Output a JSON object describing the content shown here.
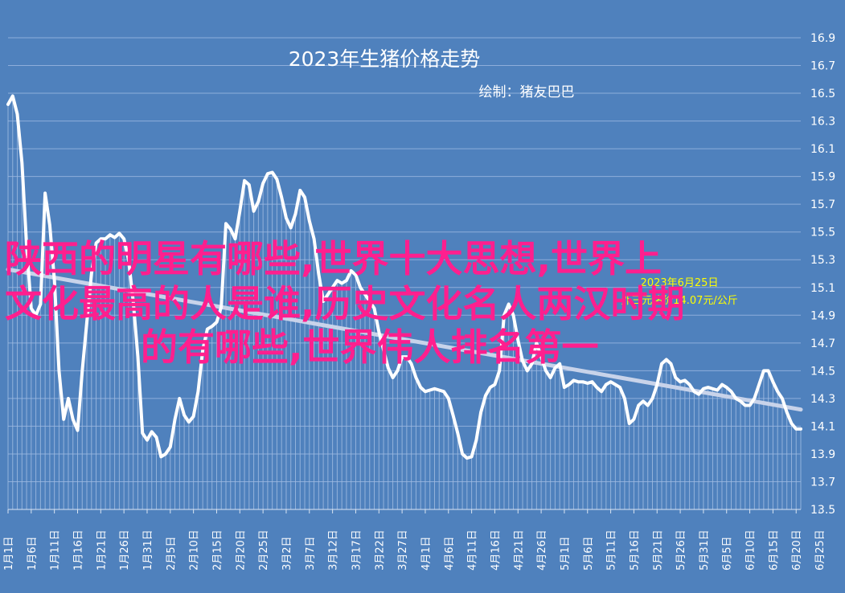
{
  "chart_data": {
    "type": "area",
    "title": "2023年生猪价格走势",
    "subtitle": "绘制：猪友巴巴",
    "xlabel": "",
    "ylabel": "",
    "ylim": [
      13.5,
      16.9
    ],
    "yticks": [
      "13.5",
      "13.7",
      "13.9",
      "14.1",
      "14.3",
      "14.5",
      "14.7",
      "14.9",
      "15.1",
      "15.3",
      "15.5",
      "15.7",
      "15.9",
      "16.1",
      "16.3",
      "16.5",
      "16.7",
      "16.9"
    ],
    "grid": true,
    "x_tick_labels": [
      "1月1日",
      "1月6日",
      "1月11日",
      "1月16日",
      "1月21日",
      "1月26日",
      "1月31日",
      "2月5日",
      "2月10日",
      "2月15日",
      "2月20日",
      "2月25日",
      "3月2日",
      "3月7日",
      "3月12日",
      "3月17日",
      "3月22日",
      "3月27日",
      "4月1日",
      "4月6日",
      "4月11日",
      "4月16日",
      "4月21日",
      "4月26日",
      "5月1日",
      "5月6日",
      "5月11日",
      "5月16日",
      "5月21日",
      "5月26日",
      "5月31日",
      "6月5日",
      "6月10日",
      "6月15日",
      "6月20日",
      "6月25日"
    ],
    "series": [
      {
        "values": [
          16.42,
          16.48,
          16.35,
          16.0,
          15.4,
          14.95,
          14.9,
          14.98,
          15.78,
          15.55,
          15.15,
          14.5,
          14.15,
          14.3,
          14.15,
          14.07,
          14.5,
          14.85,
          15.2,
          15.42,
          15.45,
          15.45,
          15.48,
          15.46,
          15.49,
          15.45,
          15.3,
          15.0,
          14.6,
          14.05,
          14.0,
          14.06,
          14.02,
          13.88,
          13.9,
          13.95,
          14.15,
          14.3,
          14.18,
          14.13,
          14.17,
          14.35,
          14.65,
          14.8,
          14.82,
          14.85,
          14.96,
          15.56,
          15.52,
          15.45,
          15.65,
          15.87,
          15.84,
          15.65,
          15.72,
          15.85,
          15.92,
          15.93,
          15.88,
          15.75,
          15.6,
          15.53,
          15.63,
          15.8,
          15.75,
          15.58,
          15.45,
          15.2,
          15.0,
          15.05,
          15.1,
          15.15,
          15.13,
          15.15,
          15.22,
          15.19,
          15.1,
          15.05,
          15.0,
          14.95,
          14.78,
          14.65,
          14.52,
          14.45,
          14.5,
          14.6,
          14.6,
          14.55,
          14.45,
          14.38,
          14.35,
          14.36,
          14.37,
          14.36,
          14.35,
          14.3,
          14.18,
          14.05,
          13.9,
          13.87,
          13.88,
          14.0,
          14.2,
          14.32,
          14.38,
          14.4,
          14.5,
          14.9,
          14.98,
          14.9,
          14.72,
          14.57,
          14.5,
          14.55,
          14.7,
          14.6,
          14.5,
          14.45,
          14.52,
          14.55,
          14.38,
          14.4,
          14.43,
          14.42,
          14.42,
          14.41,
          14.42,
          14.38,
          14.35,
          14.4,
          14.42,
          14.4,
          14.38,
          14.3,
          14.12,
          14.15,
          14.25,
          14.28,
          14.25,
          14.3,
          14.4,
          14.55,
          14.58,
          14.55,
          14.45,
          14.42,
          14.43,
          14.4,
          14.35,
          14.33,
          14.37,
          14.38,
          14.37,
          14.36,
          14.4,
          14.38,
          14.35,
          14.3,
          14.28,
          14.25,
          14.25,
          14.3,
          14.4,
          14.5,
          14.5,
          14.42,
          14.35,
          14.3,
          14.2,
          14.12,
          14.08,
          14.08
        ]
      }
    ],
    "trendline": {
      "start": 15.23,
      "end": 14.22
    },
    "annotation": {
      "lines": [
        "2023年6月25日",
        "外三元猪价14.07元/公斤"
      ],
      "color": "#ffff00"
    }
  },
  "overlay_text": {
    "lines": [
      "陕西的明星有哪些,世界十大思想,世界上",
      "文化最高的人是谁,历史文化名人两汉时期",
      "的有哪些,世界伟人排名第一"
    ],
    "color": "#ff1f8e"
  },
  "colors": {
    "background": "#4f81bd",
    "series_line": "#ffffff",
    "trendline": "#c8d3ea",
    "grid": "#8eaedb"
  }
}
